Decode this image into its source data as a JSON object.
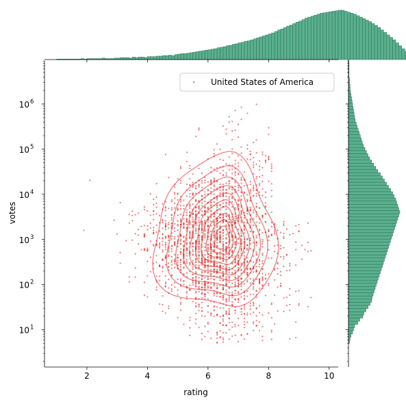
{
  "chart_data": {
    "type": "scatter",
    "subtype": "jointplot",
    "xlabel": "rating",
    "ylabel": "votes",
    "xlim": [
      0.6,
      10.3
    ],
    "ylim": [
      1.5,
      9000000
    ],
    "yscale": "log",
    "x_ticks": [
      {
        "value": 2,
        "label": "2"
      },
      {
        "value": 4,
        "label": "4"
      },
      {
        "value": 6,
        "label": "6"
      },
      {
        "value": 8,
        "label": "8"
      },
      {
        "value": 10,
        "label": "10"
      }
    ],
    "y_ticks": [
      {
        "value": 10,
        "base": "10",
        "exp": "1"
      },
      {
        "value": 100,
        "base": "10",
        "exp": "2"
      },
      {
        "value": 1000,
        "base": "10",
        "exp": "3"
      },
      {
        "value": 10000,
        "base": "10",
        "exp": "4"
      },
      {
        "value": 100000,
        "base": "10",
        "exp": "5"
      },
      {
        "value": 1000000,
        "base": "10",
        "exp": "6"
      }
    ],
    "series": [
      {
        "name": "United States of America",
        "color": "#e8191c"
      }
    ],
    "legend": {
      "position": "top-right"
    },
    "grid": false,
    "point_cloud": {
      "rating_mean": 6.3,
      "rating_sd": 1.1,
      "rating_range": [
        1.2,
        9.7
      ],
      "log10_votes_mean": 2.9,
      "log10_votes_sd": 0.8,
      "votes_range": [
        5,
        3000000
      ]
    },
    "kde_center": {
      "rating": 6.5,
      "votes": 1000
    },
    "rating_histogram": {
      "bin_start": 1.0,
      "bin_width": 0.1,
      "counts": [
        1,
        1,
        1,
        1,
        1,
        1,
        1,
        1,
        2,
        1,
        2,
        2,
        2,
        2,
        2,
        3,
        2,
        2,
        2,
        3,
        3,
        4,
        4,
        4,
        3,
        5,
        4,
        5,
        5,
        4,
        6,
        6,
        6,
        7,
        7,
        8,
        8,
        9,
        8,
        10,
        11,
        12,
        12,
        13,
        14,
        15,
        16,
        17,
        18,
        19,
        20,
        21,
        22,
        24,
        25,
        26,
        28,
        29,
        31,
        32,
        34,
        35,
        37,
        38,
        40,
        42,
        44,
        46,
        48,
        50,
        52,
        54,
        57,
        60,
        62,
        65,
        68,
        70,
        73,
        76,
        78,
        81,
        84,
        86,
        88,
        90,
        92,
        94,
        95,
        96,
        97,
        98,
        99,
        100,
        100,
        98,
        96,
        94,
        92,
        89,
        86,
        83,
        80,
        77,
        73,
        69,
        65,
        60,
        55,
        50,
        45,
        40,
        34,
        28,
        22,
        17,
        12,
        8,
        5,
        3,
        2,
        2,
        1,
        1,
        1,
        1,
        0,
        0,
        0,
        0
      ]
    },
    "votes_histogram": {
      "log10_bin_start": 0.7,
      "log10_bin_width": 0.07,
      "counts": [
        2,
        3,
        5,
        8,
        10,
        12,
        18,
        22,
        28,
        30,
        34,
        38,
        42,
        45,
        46,
        48,
        50,
        52,
        54,
        56,
        58,
        60,
        62,
        64,
        66,
        68,
        70,
        72,
        74,
        76,
        78,
        80,
        82,
        84,
        86,
        88,
        90,
        92,
        94,
        96,
        98,
        100,
        98,
        96,
        94,
        92,
        89,
        86,
        82,
        78,
        74,
        70,
        66,
        62,
        57,
        53,
        49,
        45,
        41,
        38,
        35,
        32,
        29,
        27,
        25,
        23,
        21,
        19,
        17,
        15,
        13,
        12,
        11,
        10,
        9,
        8,
        7,
        6,
        5,
        4,
        3,
        3,
        2,
        2,
        1,
        1,
        1,
        1,
        1,
        1
      ]
    }
  }
}
